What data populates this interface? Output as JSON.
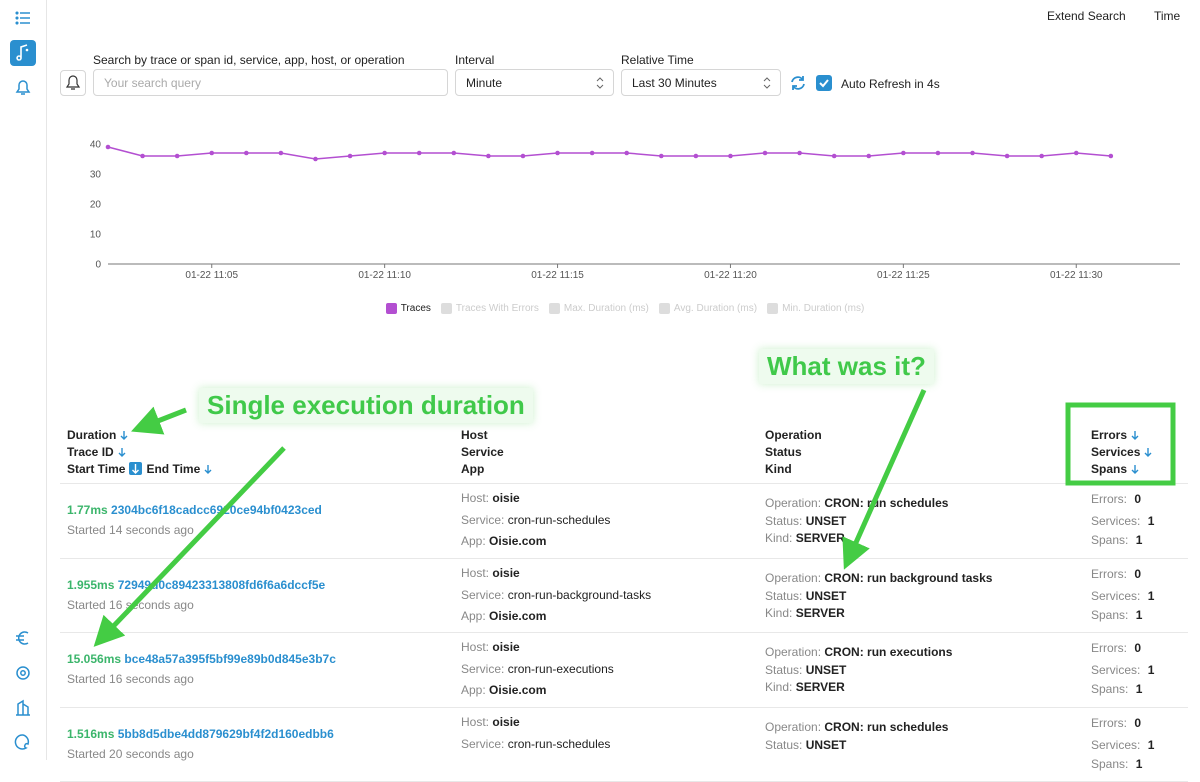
{
  "header": {
    "actions": [
      "Extend Search",
      "Time"
    ]
  },
  "filters": {
    "search_label": "Search by trace or span id, service, app, host, or operation",
    "search_placeholder": "Your search query",
    "interval_label": "Interval",
    "interval_value": "Minute",
    "relative_time_label": "Relative Time",
    "relative_time_value": "Last 30 Minutes",
    "auto_refresh": "Auto Refresh in 4s",
    "auto_refresh_checked": true
  },
  "chart_data": {
    "type": "line",
    "x": [
      "01-22 11:02",
      "01-22 11:03",
      "01-22 11:04",
      "01-22 11:05",
      "01-22 11:06",
      "01-22 11:07",
      "01-22 11:08",
      "01-22 11:09",
      "01-22 11:10",
      "01-22 11:11",
      "01-22 11:12",
      "01-22 11:13",
      "01-22 11:14",
      "01-22 11:15",
      "01-22 11:16",
      "01-22 11:17",
      "01-22 11:18",
      "01-22 11:19",
      "01-22 11:20",
      "01-22 11:21",
      "01-22 11:22",
      "01-22 11:23",
      "01-22 11:24",
      "01-22 11:25",
      "01-22 11:26",
      "01-22 11:27",
      "01-22 11:28",
      "01-22 11:29",
      "01-22 11:30",
      "01-22 11:31"
    ],
    "series": [
      {
        "name": "Traces",
        "color": "#b34fd1",
        "values": [
          39,
          36,
          36,
          37,
          37,
          37,
          35,
          36,
          37,
          37,
          37,
          36,
          36,
          37,
          37,
          37,
          36,
          36,
          36,
          37,
          37,
          36,
          36,
          37,
          37,
          37,
          36,
          36,
          37,
          36
        ]
      }
    ],
    "legend_hidden": [
      "Traces With Errors",
      "Max. Duration (ms)",
      "Avg. Duration (ms)",
      "Min. Duration (ms)"
    ],
    "xlim": [
      "01-22 11:02",
      "01-22 11:33"
    ],
    "xticks": [
      "01-22 11:05",
      "01-22 11:10",
      "01-22 11:15",
      "01-22 11:20",
      "01-22 11:25",
      "01-22 11:30"
    ],
    "ylim": [
      0,
      45
    ],
    "yticks": [
      0,
      10,
      20,
      30,
      40
    ],
    "grid": false
  },
  "annotations": [
    "Single execution duration",
    "What was it?"
  ],
  "table": {
    "headers": [
      [
        "Duration",
        "Trace ID",
        "Start Time",
        "End Time"
      ],
      [
        "Host",
        "Service",
        "App"
      ],
      [
        "Operation",
        "Status",
        "Kind"
      ],
      [
        "Errors",
        "Services",
        "Spans"
      ]
    ],
    "field_labels": {
      "host": "Host:",
      "service": "Service:",
      "app": "App:",
      "operation": "Operation:",
      "status": "Status:",
      "kind": "Kind:",
      "errors": "Errors:",
      "services": "Services:",
      "spans": "Spans:"
    },
    "rows": [
      {
        "duration": "1.77ms",
        "trace_id": "2304bc6f18cadcc6920ce94bf0423ced",
        "started": "Started 14 seconds ago",
        "host": "oisie",
        "service": "cron-run-schedules",
        "app": "Oisie.com",
        "operation": "CRON: run schedules",
        "status": "UNSET",
        "kind": "SERVER",
        "errors": 0,
        "services": 1,
        "spans": 1
      },
      {
        "duration": "1.955ms",
        "trace_id": "72949d0c89423313808fd6f6a6dccf5e",
        "started": "Started 16 seconds ago",
        "host": "oisie",
        "service": "cron-run-background-tasks",
        "app": "Oisie.com",
        "operation": "CRON: run background tasks",
        "status": "UNSET",
        "kind": "SERVER",
        "errors": 0,
        "services": 1,
        "spans": 1
      },
      {
        "duration": "15.056ms",
        "trace_id": "bce48a57a395f5bf99e89b0d845e3b7c",
        "started": "Started 16 seconds ago",
        "host": "oisie",
        "service": "cron-run-executions",
        "app": "Oisie.com",
        "operation": "CRON: run executions",
        "status": "UNSET",
        "kind": "SERVER",
        "errors": 0,
        "services": 1,
        "spans": 1
      },
      {
        "duration": "1.516ms",
        "trace_id": "5bb8d5dbe4dd879629bf4f2d160edbb6",
        "started": "Started 20 seconds ago",
        "host": "oisie",
        "service": "cron-run-schedules",
        "operation": "CRON: run schedules",
        "status": "UNSET",
        "errors": 0,
        "services": 1,
        "spans": 1
      }
    ]
  }
}
